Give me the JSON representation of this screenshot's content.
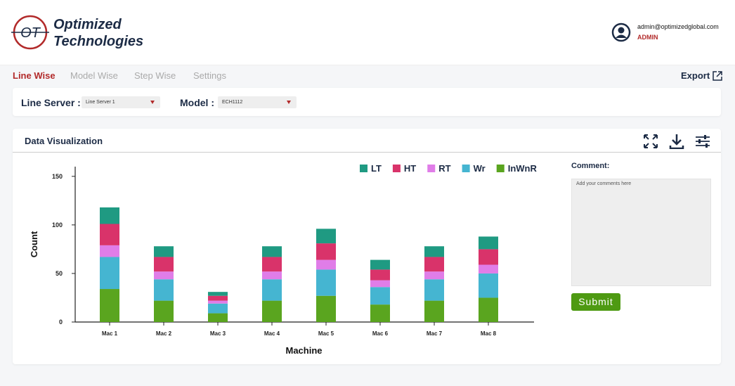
{
  "header": {
    "logo_mark": "OT",
    "brand_line1": "Optimized",
    "brand_line2": "Technologies",
    "user_email": "admin@optimizedglobal.com",
    "user_role": "ADMIN"
  },
  "tabs": [
    "Line Wise",
    "Model Wise",
    "Step Wise",
    "Settings"
  ],
  "export": "Export",
  "filters": {
    "line_server_label": "Line Server :",
    "line_server_value": "Line Server 1",
    "model_label": "Model :",
    "model_value": "ECH1112"
  },
  "panel": {
    "title": "Data Visualization",
    "comment_label": "Comment:",
    "comment_placeholder": "Add your comments here",
    "submit": "Submit"
  },
  "chart_data": {
    "type": "stacked-bar",
    "x_label": "Machine",
    "y_label": "Count",
    "categories": [
      "Mac 1",
      "Mac 2",
      "Mac 3",
      "Mac 4",
      "Mac 5",
      "Mac 6",
      "Mac 7",
      "Mac 8"
    ],
    "series": [
      {
        "name": "InWnR",
        "color": "#5aa51f",
        "values": [
          34,
          22,
          9,
          22,
          27,
          18,
          22,
          25
        ]
      },
      {
        "name": "Wr",
        "color": "#45b5d1",
        "values": [
          33,
          22,
          10,
          22,
          27,
          18,
          22,
          25
        ]
      },
      {
        "name": "RT",
        "color": "#e07de8",
        "values": [
          12,
          8,
          3,
          8,
          10,
          7,
          8,
          9
        ]
      },
      {
        "name": "HT",
        "color": "#d9336a",
        "values": [
          22,
          15,
          5,
          15,
          17,
          11,
          15,
          16
        ]
      },
      {
        "name": "LT",
        "color": "#1f9a82",
        "values": [
          17,
          11,
          4,
          11,
          15,
          10,
          11,
          13
        ]
      }
    ],
    "legend_order": [
      4,
      3,
      2,
      1,
      0
    ],
    "ylim": [
      0,
      160
    ],
    "yticks": [
      0,
      50,
      100,
      150
    ]
  }
}
